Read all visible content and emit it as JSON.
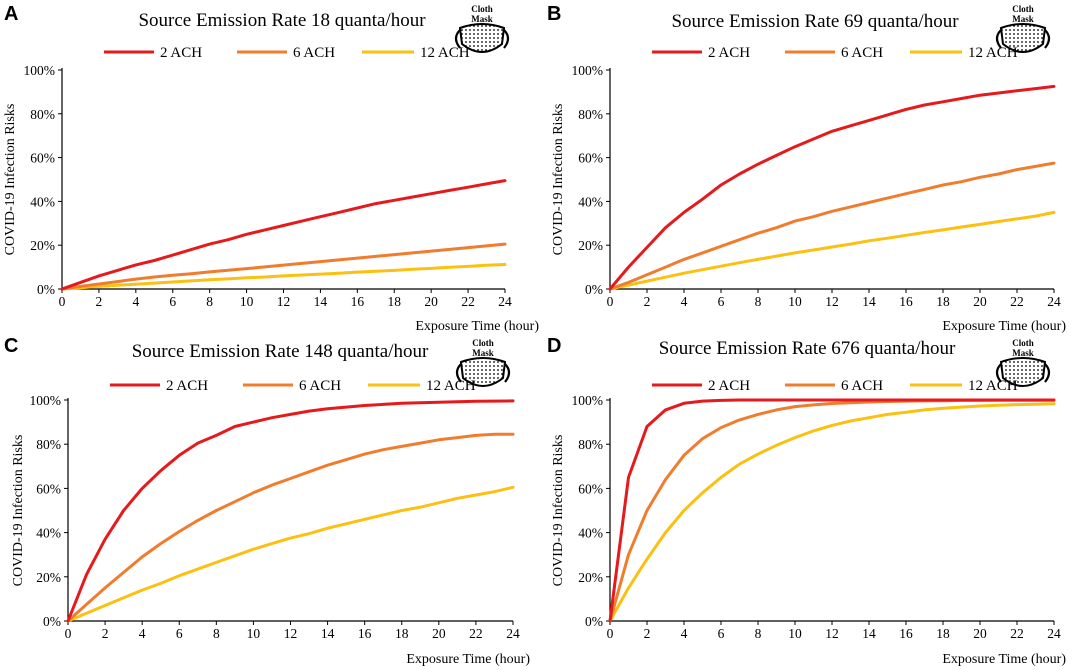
{
  "mask_label_line1": "Cloth",
  "mask_label_line2": "Mask",
  "series_colors": {
    "2 ACH": "#e41a1c",
    "6 ACH": "#f07c2e",
    "12 ACH": "#fbc011"
  },
  "chart_data": [
    {
      "panel": "A",
      "type": "line",
      "title": "Source Emission Rate 18 quanta/hour",
      "xlabel": "Exposure Time (hour)",
      "ylabel": "COVID-19 Infection Risks",
      "xlim": [
        0,
        24
      ],
      "ylim": [
        0,
        100
      ],
      "xticks": [
        "0",
        "2",
        "4",
        "6",
        "8",
        "10",
        "12",
        "14",
        "16",
        "18",
        "20",
        "22",
        "24"
      ],
      "yticks": [
        "0%",
        "20%",
        "40%",
        "60%",
        "80%",
        "100%"
      ],
      "x": [
        0,
        1,
        2,
        3,
        4,
        5,
        6,
        7,
        8,
        9,
        10,
        11,
        12,
        13,
        14,
        15,
        16,
        17,
        18,
        19,
        20,
        21,
        22,
        23,
        24
      ],
      "series": [
        {
          "name": "2 ACH",
          "values": [
            0,
            3,
            6,
            8.5,
            11,
            13,
            15.5,
            18,
            20.5,
            22.5,
            25,
            27,
            29,
            31,
            33,
            35,
            37,
            39,
            40.5,
            42,
            43.5,
            45,
            46.5,
            48,
            49.5
          ]
        },
        {
          "name": "6 ACH",
          "values": [
            0,
            1.2,
            2.3,
            3.4,
            4.5,
            5.5,
            6.3,
            7,
            7.8,
            8.6,
            9.3,
            10.1,
            10.9,
            11.7,
            12.5,
            13.3,
            14.1,
            14.9,
            15.7,
            16.5,
            17.3,
            18.1,
            18.9,
            19.7,
            20.5
          ]
        },
        {
          "name": "12 ACH",
          "values": [
            0,
            0.6,
            1.2,
            1.7,
            2.2,
            2.7,
            3.2,
            3.7,
            4.2,
            4.6,
            5.1,
            5.5,
            6,
            6.4,
            6.8,
            7.2,
            7.7,
            8.1,
            8.5,
            9,
            9.4,
            9.9,
            10.3,
            10.8,
            11.2
          ]
        }
      ]
    },
    {
      "panel": "B",
      "type": "line",
      "title": "Source Emission Rate 69 quanta/hour",
      "xlabel": "Exposure Time (hour)",
      "ylabel": "COVID-19 Infection Risks",
      "xlim": [
        0,
        24
      ],
      "ylim": [
        0,
        100
      ],
      "xticks": [
        "0",
        "2",
        "4",
        "6",
        "8",
        "10",
        "12",
        "14",
        "16",
        "18",
        "20",
        "22",
        "24"
      ],
      "yticks": [
        "0%",
        "20%",
        "40%",
        "60%",
        "80%",
        "100%"
      ],
      "x": [
        0,
        1,
        2,
        3,
        4,
        5,
        6,
        7,
        8,
        9,
        10,
        11,
        12,
        13,
        14,
        15,
        16,
        17,
        18,
        19,
        20,
        21,
        22,
        23,
        24
      ],
      "series": [
        {
          "name": "2 ACH",
          "values": [
            0,
            10,
            19,
            28,
            35,
            41,
            47.5,
            52.5,
            57,
            61,
            65,
            68.5,
            72,
            74.5,
            77,
            79.5,
            82,
            84,
            85.5,
            87,
            88.5,
            89.5,
            90.5,
            91.5,
            92.5
          ]
        },
        {
          "name": "6 ACH",
          "values": [
            0,
            3,
            6.5,
            10,
            13.5,
            16.5,
            19.5,
            22.5,
            25.5,
            28,
            31,
            33,
            35.5,
            37.5,
            39.5,
            41.5,
            43.5,
            45.5,
            47.5,
            49,
            51,
            52.5,
            54.5,
            56,
            57.5
          ]
        },
        {
          "name": "12 ACH",
          "values": [
            0,
            1.8,
            3.6,
            5.4,
            7.2,
            8.8,
            10.4,
            12,
            13.5,
            15,
            16.5,
            17.8,
            19.2,
            20.5,
            22,
            23.2,
            24.5,
            25.8,
            27,
            28.3,
            29.5,
            30.8,
            32,
            33.3,
            35
          ]
        }
      ]
    },
    {
      "panel": "C",
      "type": "line",
      "title": "Source Emission Rate 148 quanta/hour",
      "xlabel": "Exposure Time (hour)",
      "ylabel": "COVID-19 Infection Risks",
      "xlim": [
        0,
        24
      ],
      "ylim": [
        0,
        100
      ],
      "xticks": [
        "0",
        "2",
        "4",
        "6",
        "8",
        "10",
        "12",
        "14",
        "16",
        "18",
        "20",
        "22",
        "24"
      ],
      "yticks": [
        "0%",
        "20%",
        "40%",
        "60%",
        "80%",
        "100%"
      ],
      "x": [
        0,
        1,
        2,
        3,
        4,
        5,
        6,
        7,
        8,
        9,
        10,
        11,
        12,
        13,
        14,
        15,
        16,
        17,
        18,
        19,
        20,
        21,
        22,
        23,
        24
      ],
      "series": [
        {
          "name": "2 ACH",
          "values": [
            0,
            21,
            37,
            50,
            60,
            68,
            75,
            80.5,
            84,
            88,
            90,
            92,
            93.5,
            95,
            96,
            96.8,
            97.5,
            98,
            98.5,
            98.8,
            99,
            99.2,
            99.4,
            99.5,
            99.6
          ]
        },
        {
          "name": "6 ACH",
          "values": [
            0,
            7.5,
            15,
            22,
            29,
            35,
            40.5,
            45.5,
            50,
            54,
            58,
            61.5,
            64.5,
            67.5,
            70.5,
            73,
            75.5,
            77.5,
            79,
            80.5,
            82,
            83,
            84,
            84.5,
            84.5
          ]
        },
        {
          "name": "12 ACH",
          "values": [
            0,
            3.5,
            7,
            10.5,
            14,
            17,
            20.5,
            23.5,
            26.5,
            29.5,
            32.5,
            35,
            37.5,
            39.5,
            42,
            44,
            46,
            48,
            50,
            51.5,
            53.5,
            55.5,
            57,
            58.5,
            60.5
          ]
        }
      ]
    },
    {
      "panel": "D",
      "type": "line",
      "title": "Source Emission Rate 676 quanta/hour",
      "xlabel": "Exposure Time (hour)",
      "ylabel": "COVID-19 Infection Risks",
      "xlim": [
        0,
        24
      ],
      "ylim": [
        0,
        100
      ],
      "xticks": [
        "0",
        "2",
        "4",
        "6",
        "8",
        "10",
        "12",
        "14",
        "16",
        "18",
        "20",
        "22",
        "24"
      ],
      "yticks": [
        "0%",
        "20%",
        "40%",
        "60%",
        "80%",
        "100%"
      ],
      "x": [
        0,
        1,
        2,
        3,
        4,
        5,
        6,
        7,
        8,
        9,
        10,
        11,
        12,
        13,
        14,
        15,
        16,
        17,
        18,
        19,
        20,
        21,
        22,
        23,
        24
      ],
      "series": [
        {
          "name": "2 ACH",
          "values": [
            0,
            65,
            88,
            95.5,
            98.5,
            99.5,
            99.8,
            100,
            100,
            100,
            100,
            100,
            100,
            100,
            100,
            100,
            100,
            100,
            100,
            100,
            100,
            100,
            100,
            100,
            100
          ]
        },
        {
          "name": "6 ACH",
          "values": [
            0,
            30,
            50,
            64,
            75,
            82.5,
            87.5,
            91,
            93.5,
            95.5,
            97,
            97.8,
            98.4,
            98.8,
            99.1,
            99.3,
            99.5,
            99.6,
            99.7,
            99.8,
            99.8,
            99.9,
            99.9,
            99.9,
            99.9
          ]
        },
        {
          "name": "12 ACH",
          "values": [
            0,
            15,
            28,
            40,
            50,
            58,
            65,
            71,
            75.5,
            79.5,
            83,
            86,
            88.5,
            90.5,
            92,
            93.5,
            94.5,
            95.5,
            96.3,
            96.8,
            97.3,
            97.6,
            97.9,
            98.1,
            98.3
          ]
        }
      ]
    }
  ]
}
